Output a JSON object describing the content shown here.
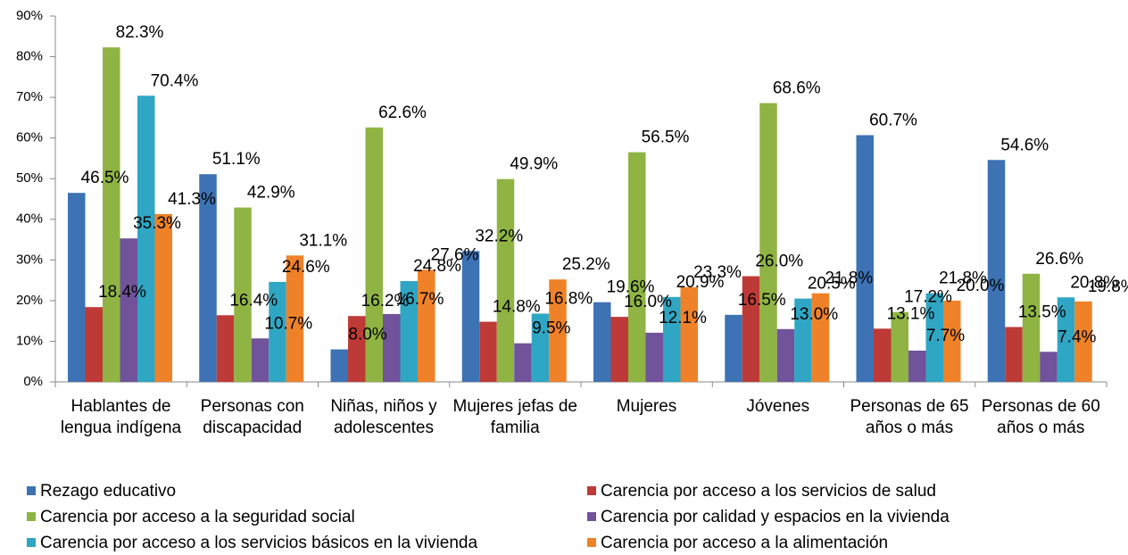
{
  "chart_data": {
    "type": "bar",
    "categories": [
      "Hablantes de lengua indígena",
      "Personas con discapacidad",
      "Niñas, niños y adolescentes",
      "Mujeres jefas de familia",
      "Mujeres",
      "Jóvenes",
      "Personas de 65 años o más",
      "Personas de 60 años o más"
    ],
    "series": [
      {
        "name": "Rezago educativo",
        "color": "#3d72b4",
        "values": [
          46.5,
          51.1,
          8.0,
          32.2,
          19.6,
          16.5,
          60.7,
          54.6
        ],
        "value_labels": [
          "46.5%",
          "51.1%",
          "8.0%",
          "32.2%",
          "19.6%",
          "16.5%",
          "60.7%",
          "54.6%"
        ]
      },
      {
        "name": "Carencia por acceso a los servicios de salud",
        "color": "#be3a36",
        "values": [
          18.4,
          16.4,
          16.2,
          14.8,
          16.0,
          26.0,
          13.1,
          13.5
        ],
        "value_labels": [
          "18.4%",
          "16.4%",
          "16.2%",
          "14.8%",
          "16.0%",
          "26.0%",
          "13.1%",
          "13.5%"
        ]
      },
      {
        "name": "Carencia por acceso a la seguridad social",
        "color": "#8fb443",
        "values": [
          82.3,
          42.9,
          62.6,
          49.9,
          56.5,
          68.6,
          17.2,
          26.6
        ],
        "value_labels": [
          "82.3%",
          "42.9%",
          "62.6%",
          "49.9%",
          "56.5%",
          "68.6%",
          "17.2%",
          "26.6%"
        ]
      },
      {
        "name": "Carencia por calidad y espacios en la vivienda",
        "color": "#70539a",
        "values": [
          35.3,
          10.7,
          16.7,
          9.5,
          12.1,
          13.0,
          7.7,
          7.4
        ],
        "value_labels": [
          "35.3%",
          "10.7%",
          "16.7%",
          "9.5%",
          "12.1%",
          "13.0%",
          "7.7%",
          "7.4%"
        ]
      },
      {
        "name": "Carencia por acceso a los servicios básicos en la vivienda",
        "color": "#2fa6c3",
        "values": [
          70.4,
          24.6,
          24.8,
          16.8,
          20.9,
          20.5,
          21.8,
          20.8
        ],
        "value_labels": [
          "70.4%",
          "24.6%",
          "24.8%",
          "16.8%",
          "20.9%",
          "20.5%",
          "21.8%",
          "20.8%"
        ]
      },
      {
        "name": "Carencia por acceso a la alimentación",
        "color": "#ef8229",
        "values": [
          41.3,
          31.1,
          27.6,
          25.2,
          23.3,
          21.8,
          20.0,
          19.8
        ],
        "value_labels": [
          "41.3%",
          "31.1%",
          "27.6%",
          "25.2%",
          "23.3%",
          "21.8%",
          "20.0%",
          "19.8%"
        ]
      }
    ],
    "ylim": [
      0,
      90
    ],
    "yticks": [
      {
        "value": 0,
        "label": "0%"
      },
      {
        "value": 10,
        "label": "10%"
      },
      {
        "value": 20,
        "label": "20%"
      },
      {
        "value": 30,
        "label": "30%"
      },
      {
        "value": 40,
        "label": "40%"
      },
      {
        "value": 50,
        "label": "50%"
      },
      {
        "value": 60,
        "label": "60%"
      },
      {
        "value": 70,
        "label": "70%"
      },
      {
        "value": 80,
        "label": "80%"
      },
      {
        "value": 90,
        "label": "90%"
      }
    ],
    "legend": "bottom"
  }
}
